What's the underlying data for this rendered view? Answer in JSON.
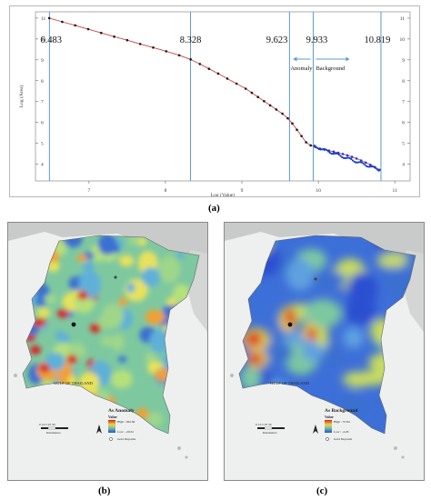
{
  "figure": {
    "panel_a_label": "(a)",
    "panel_b_label": "(b)",
    "panel_c_label": "(c)"
  },
  "chart_data": {
    "type": "scatter",
    "xlabel": "Log (Value)",
    "ylabel": "Log (Area)",
    "xlim": [
      6.3,
      11.2
    ],
    "ylim": [
      3.2,
      11.3
    ],
    "x_ticks": [
      "7",
      "8",
      "9",
      "10",
      "11"
    ],
    "y_ticks": [
      "4",
      "5",
      "6",
      "7",
      "8",
      "9",
      "10",
      "11"
    ],
    "thresholds": [
      "6.483",
      "8.328",
      "9.623",
      "9.933",
      "10.819"
    ],
    "annotations": {
      "anomaly": "Anomaly",
      "background": "Background"
    },
    "grid": false,
    "series": [
      {
        "x": [
          6.48,
          6.65,
          6.82,
          6.99,
          7.16,
          7.33,
          7.5,
          7.67,
          7.84,
          8.01,
          8.18,
          8.33,
          8.45,
          8.57,
          8.69,
          8.81,
          8.93,
          9.05,
          9.13,
          9.21,
          9.29,
          9.37,
          9.45,
          9.53,
          9.6,
          9.66,
          9.72,
          9.78,
          9.84,
          9.9,
          9.96,
          10.02,
          10.08,
          10.14,
          10.2,
          10.26,
          10.32,
          10.38,
          10.44,
          10.5,
          10.56,
          10.62,
          10.68,
          10.74,
          10.8
        ],
        "y": [
          11.0,
          10.82,
          10.65,
          10.47,
          10.29,
          10.11,
          9.94,
          9.76,
          9.59,
          9.41,
          9.22,
          9.02,
          8.8,
          8.57,
          8.34,
          8.1,
          7.86,
          7.62,
          7.42,
          7.22,
          7.02,
          6.82,
          6.62,
          6.42,
          6.2,
          5.95,
          5.65,
          5.35,
          5.05,
          4.9,
          4.82,
          4.75,
          4.7,
          4.65,
          4.6,
          4.55,
          4.49,
          4.42,
          4.35,
          4.27,
          4.18,
          4.08,
          3.97,
          3.86,
          3.73
        ]
      }
    ]
  },
  "maps": {
    "anomaly": {
      "gulf_label": "GULF OF THAILAND",
      "legend_title": "As Anomaly",
      "legend_value_label": "Value",
      "legend_high": "High : 492.84",
      "legend_low": "Low : -20.61",
      "legend_deposits": "Gold Deposits",
      "scale_values": "0 12.5 25 50",
      "scale_unit": "Kilometers"
    },
    "background": {
      "gulf_label": "GULF OF THAILAND",
      "legend_title": "As Background",
      "legend_value_label": "Value",
      "legend_high": "High : 37.84",
      "legend_low": "Low : -4.29",
      "legend_deposits": "Gold Deposits",
      "scale_values": "0 12.5 25 50",
      "scale_unit": "Kilometers"
    }
  },
  "colors": {
    "threshold_line": "#5b9bd5",
    "trend_line": "#d04040",
    "point_dark": "#1a1a1a",
    "point_blue": "#1a3cc8",
    "anomaly_base": "#7ec8a0",
    "background_base": "#3d6fd8",
    "high": "#d82020",
    "low": "#2b4fd0"
  }
}
